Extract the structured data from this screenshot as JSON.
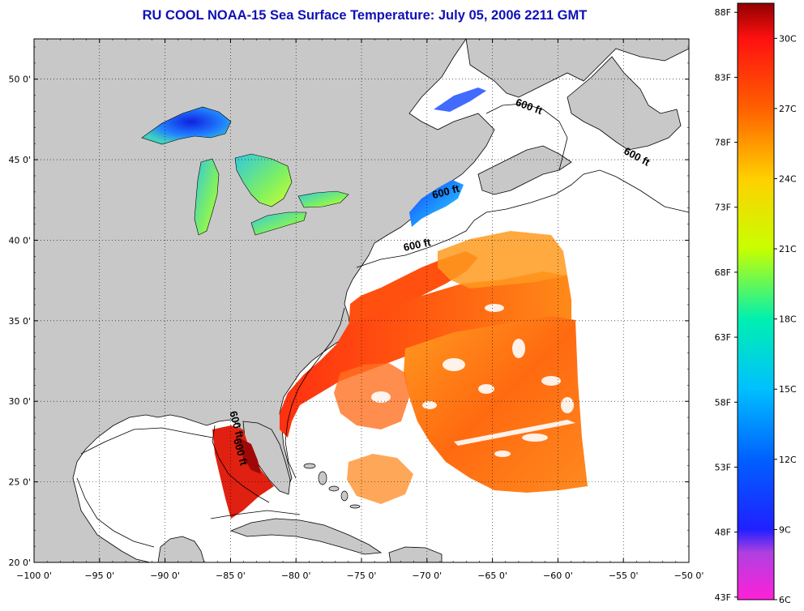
{
  "title": "RU COOL  NOAA-15  Sea Surface Temperature:  July 05, 2006 2211 GMT",
  "map": {
    "lon_range": [
      -100,
      -50
    ],
    "lat_range": [
      20,
      52.5
    ],
    "x_ticks": [
      "−100 0'",
      "−95 0'",
      "−90 0'",
      "−85 0'",
      "−80 0'",
      "−75 0'",
      "−70 0'",
      "−65 0'",
      "−60 0'",
      "−55 0'",
      "−50 0'"
    ],
    "y_ticks": [
      "20 0'",
      "25 0'",
      "30 0'",
      "35 0'",
      "40 0'",
      "45 0'",
      "50 0'"
    ],
    "grid": "dotted",
    "contour_labels": [
      {
        "text": "600 ft",
        "lon": -70.7,
        "lat": 39.5,
        "rotation": -12
      },
      {
        "text": "600 ft",
        "lon": -68.5,
        "lat": 42.8,
        "rotation": -15
      },
      {
        "text": "600 ft",
        "lon": -62.3,
        "lat": 48.1,
        "rotation": 20
      },
      {
        "text": "600 ft",
        "lon": -54.1,
        "lat": 45.0,
        "rotation": 28
      },
      {
        "text": "600 ft",
        "lon": -84.8,
        "lat": 28.5,
        "rotation": 75
      },
      {
        "text": "600 ft",
        "lon": -84.5,
        "lat": 26.8,
        "rotation": 75
      }
    ],
    "colors": {
      "land": "#c8c8c8",
      "no_data": "#ffffff"
    }
  },
  "colorbar": {
    "fahrenheit_labels": [
      "88F",
      "83F",
      "78F",
      "73F",
      "68F",
      "63F",
      "58F",
      "53F",
      "48F",
      "43F"
    ],
    "celsius_labels": [
      "30C",
      "27C",
      "24C",
      "21C",
      "18C",
      "15C",
      "12C",
      "9C",
      "6C"
    ],
    "range_c": [
      6,
      31.5
    ],
    "stops": [
      {
        "c": 6,
        "color": "#ff20d8"
      },
      {
        "c": 8,
        "color": "#b040e0"
      },
      {
        "c": 9,
        "color": "#2020ff"
      },
      {
        "c": 12,
        "color": "#0060ff"
      },
      {
        "c": 15,
        "color": "#00c0ff"
      },
      {
        "c": 18,
        "color": "#00f0b0"
      },
      {
        "c": 21,
        "color": "#c8ff00"
      },
      {
        "c": 24,
        "color": "#ffd000"
      },
      {
        "c": 27,
        "color": "#ff6000"
      },
      {
        "c": 30,
        "color": "#ff1010"
      },
      {
        "c": 31.5,
        "color": "#900000"
      }
    ]
  }
}
